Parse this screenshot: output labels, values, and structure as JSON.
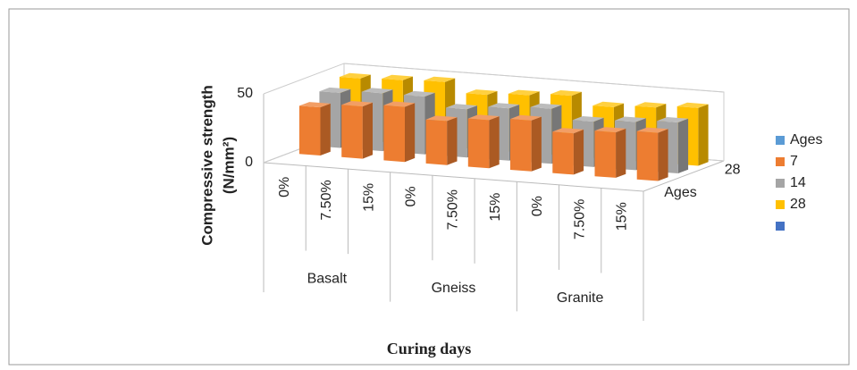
{
  "chart_data": {
    "type": "bar3d",
    "x_label": "Curing days",
    "y_label": [
      "Compressive strength",
      "(N/mm²)"
    ],
    "groups": [
      "Basalt",
      "Gneiss",
      "Granite"
    ],
    "categories": [
      "0%",
      "7.50%",
      "15%",
      "0%",
      "7.50%",
      "15%",
      "0%",
      "7.50%",
      "15%"
    ],
    "series": [
      {
        "name": "Ages",
        "color": "#5b9bd5",
        "values": [
          null,
          null,
          null,
          null,
          null,
          null,
          null,
          null,
          null
        ]
      },
      {
        "name": "7",
        "color": "#ed7d31",
        "values": [
          35,
          38,
          40,
          32,
          35,
          37,
          30,
          33,
          35
        ]
      },
      {
        "name": "14",
        "color": "#a5a5a5",
        "values": [
          40,
          42,
          42,
          35,
          38,
          40,
          33,
          35,
          37
        ]
      },
      {
        "name": "28",
        "color": "#ffc000",
        "values": [
          45,
          46,
          47,
          40,
          42,
          44,
          38,
          40,
          42
        ]
      },
      {
        "name": null,
        "color": "#4472c4",
        "values": [
          null,
          null,
          null,
          null,
          null,
          null,
          null,
          null,
          null
        ]
      }
    ],
    "zticks": [
      "Ages",
      "28"
    ],
    "ylim": [
      0,
      50
    ],
    "yticks": [
      0,
      50
    ],
    "grid": true
  }
}
